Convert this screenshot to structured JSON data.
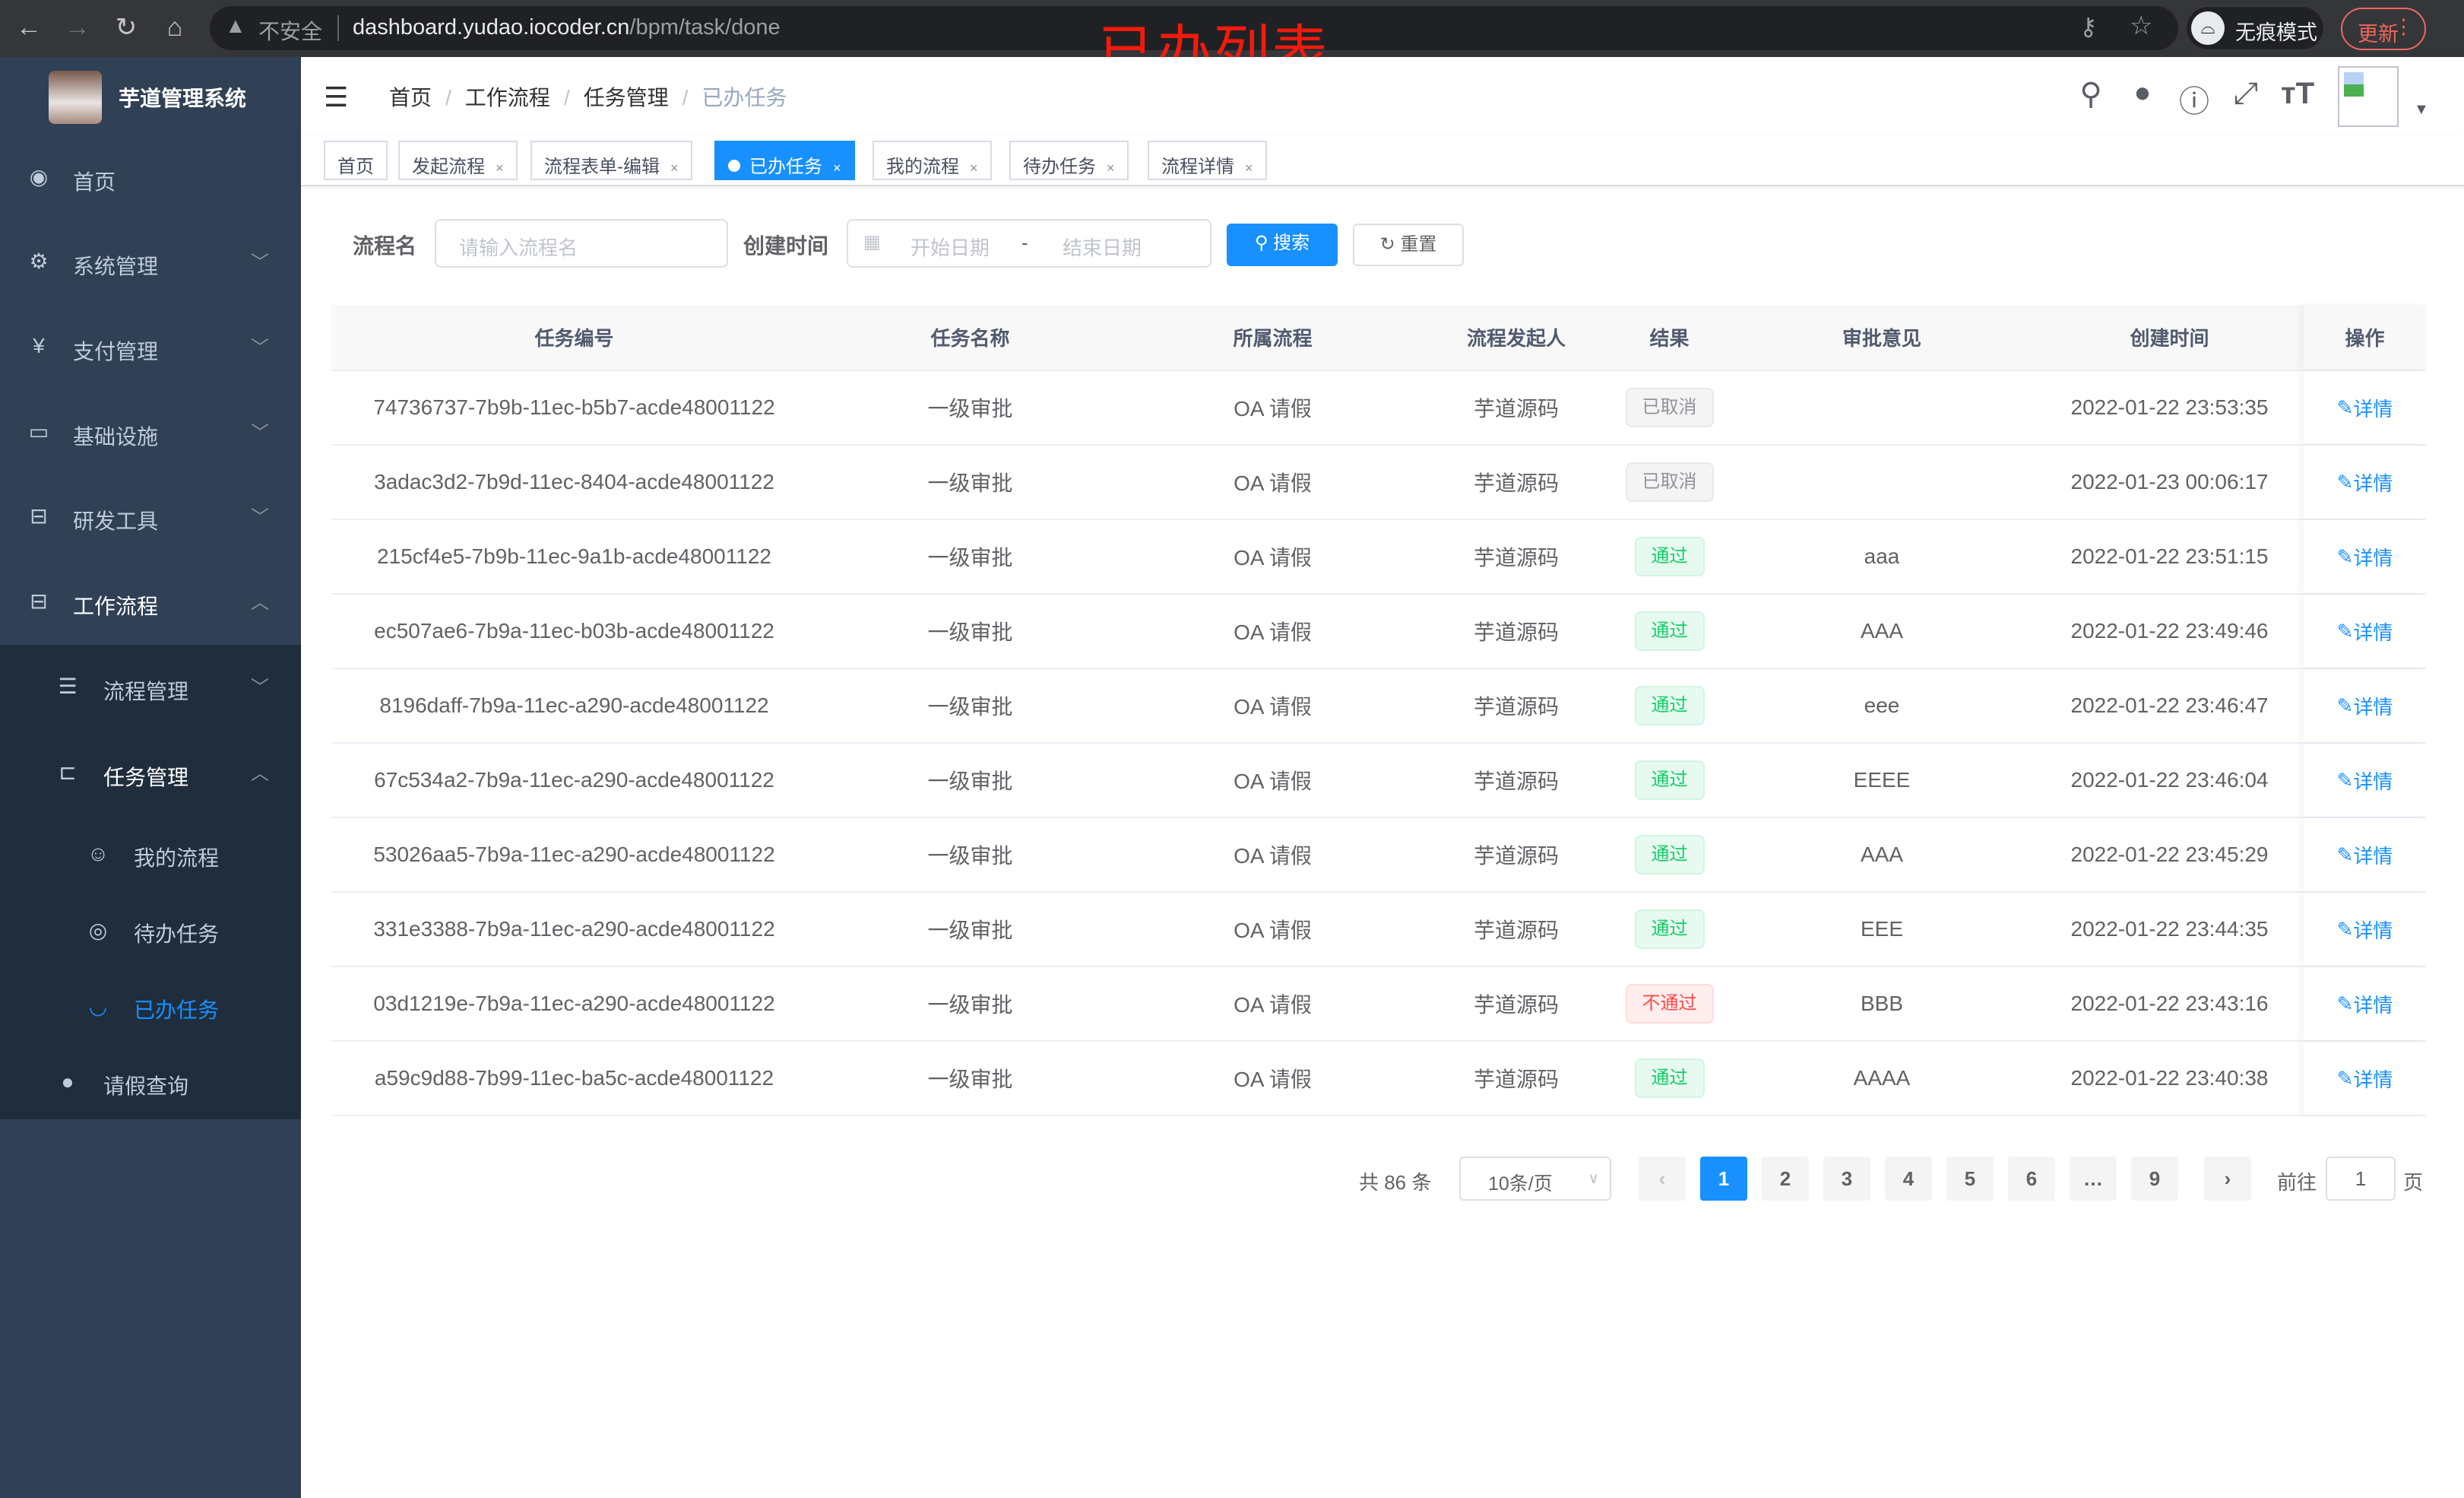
{
  "browser": {
    "url_host": "dashboard.yudao.iocoder.cn",
    "url_path": "/bpm/task/done",
    "insecure_label": "不安全",
    "incognito_label": "无痕模式",
    "update_label": "更新"
  },
  "annotation": "已办列表",
  "sidebar": {
    "brand": "芋道管理系统",
    "items": [
      {
        "label": "首页",
        "icon": "dashboard-icon"
      },
      {
        "label": "系统管理",
        "icon": "gear-icon"
      },
      {
        "label": "支付管理",
        "icon": "yen-icon"
      },
      {
        "label": "基础设施",
        "icon": "monitor-icon"
      },
      {
        "label": "研发工具",
        "icon": "toolbox-icon"
      },
      {
        "label": "工作流程",
        "icon": "toolbox-icon"
      },
      {
        "label": "流程管理",
        "icon": "list-icon"
      },
      {
        "label": "任务管理",
        "icon": "tree-icon"
      },
      {
        "label": "我的流程",
        "icon": "people-icon"
      },
      {
        "label": "待办任务",
        "icon": "eye-icon"
      },
      {
        "label": "已办任务",
        "icon": "eye-closed-icon"
      },
      {
        "label": "请假查询",
        "icon": "user-icon"
      }
    ]
  },
  "breadcrumb": [
    "首页",
    "工作流程",
    "任务管理",
    "已办任务"
  ],
  "tags": [
    "首页",
    "发起流程",
    "流程表单-编辑",
    "已办任务",
    "我的流程",
    "待办任务",
    "流程详情"
  ],
  "search": {
    "name_label": "流程名",
    "name_placeholder": "请输入流程名",
    "time_label": "创建时间",
    "start_placeholder": "开始日期",
    "range_sep": "-",
    "end_placeholder": "结束日期",
    "search_btn": "搜索",
    "reset_btn": "重置"
  },
  "table": {
    "columns": [
      "任务编号",
      "任务名称",
      "所属流程",
      "流程发起人",
      "结果",
      "审批意见",
      "创建时间",
      "操作"
    ],
    "rows": [
      {
        "id": "74736737-7b9b-11ec-b5b7-acde48001122",
        "name": "一级审批",
        "flow": "OA 请假",
        "initiator": "芋道源码",
        "result": "已取消",
        "result_type": "grey",
        "opinion": "",
        "time": "2022-01-22 23:53:35",
        "op": "详情"
      },
      {
        "id": "3adac3d2-7b9d-11ec-8404-acde48001122",
        "name": "一级审批",
        "flow": "OA 请假",
        "initiator": "芋道源码",
        "result": "已取消",
        "result_type": "grey",
        "opinion": "",
        "time": "2022-01-23 00:06:17",
        "op": "详情"
      },
      {
        "id": "215cf4e5-7b9b-11ec-9a1b-acde48001122",
        "name": "一级审批",
        "flow": "OA 请假",
        "initiator": "芋道源码",
        "result": "通过",
        "result_type": "green",
        "opinion": "aaa",
        "time": "2022-01-22 23:51:15",
        "op": "详情"
      },
      {
        "id": "ec507ae6-7b9a-11ec-b03b-acde48001122",
        "name": "一级审批",
        "flow": "OA 请假",
        "initiator": "芋道源码",
        "result": "通过",
        "result_type": "green",
        "opinion": "AAA",
        "time": "2022-01-22 23:49:46",
        "op": "详情"
      },
      {
        "id": "8196daff-7b9a-11ec-a290-acde48001122",
        "name": "一级审批",
        "flow": "OA 请假",
        "initiator": "芋道源码",
        "result": "通过",
        "result_type": "green",
        "opinion": "eee",
        "time": "2022-01-22 23:46:47",
        "op": "详情"
      },
      {
        "id": "67c534a2-7b9a-11ec-a290-acde48001122",
        "name": "一级审批",
        "flow": "OA 请假",
        "initiator": "芋道源码",
        "result": "通过",
        "result_type": "green",
        "opinion": "EEEE",
        "time": "2022-01-22 23:46:04",
        "op": "详情"
      },
      {
        "id": "53026aa5-7b9a-11ec-a290-acde48001122",
        "name": "一级审批",
        "flow": "OA 请假",
        "initiator": "芋道源码",
        "result": "通过",
        "result_type": "green",
        "opinion": "AAA",
        "time": "2022-01-22 23:45:29",
        "op": "详情"
      },
      {
        "id": "331e3388-7b9a-11ec-a290-acde48001122",
        "name": "一级审批",
        "flow": "OA 请假",
        "initiator": "芋道源码",
        "result": "通过",
        "result_type": "green",
        "opinion": "EEE",
        "time": "2022-01-22 23:44:35",
        "op": "详情"
      },
      {
        "id": "03d1219e-7b9a-11ec-a290-acde48001122",
        "name": "一级审批",
        "flow": "OA 请假",
        "initiator": "芋道源码",
        "result": "不通过",
        "result_type": "red",
        "opinion": "BBB",
        "time": "2022-01-22 23:43:16",
        "op": "详情"
      },
      {
        "id": "a59c9d88-7b99-11ec-ba5c-acde48001122",
        "name": "一级审批",
        "flow": "OA 请假",
        "initiator": "芋道源码",
        "result": "通过",
        "result_type": "green",
        "opinion": "AAAA",
        "time": "2022-01-22 23:40:38",
        "op": "详情"
      }
    ]
  },
  "pagination": {
    "total_label": "共 86 条",
    "page_size": "10条/页",
    "pages": [
      "1",
      "2",
      "3",
      "4",
      "5",
      "6",
      "…",
      "9"
    ],
    "current": "1",
    "goto_label": "前往",
    "goto_value": "1",
    "page_suffix": "页"
  },
  "colors": {
    "primary": "#1890ff",
    "sidebar": "#304156",
    "submenu": "#1f2d3d",
    "success": "#13ce66",
    "danger": "#ff4949"
  }
}
